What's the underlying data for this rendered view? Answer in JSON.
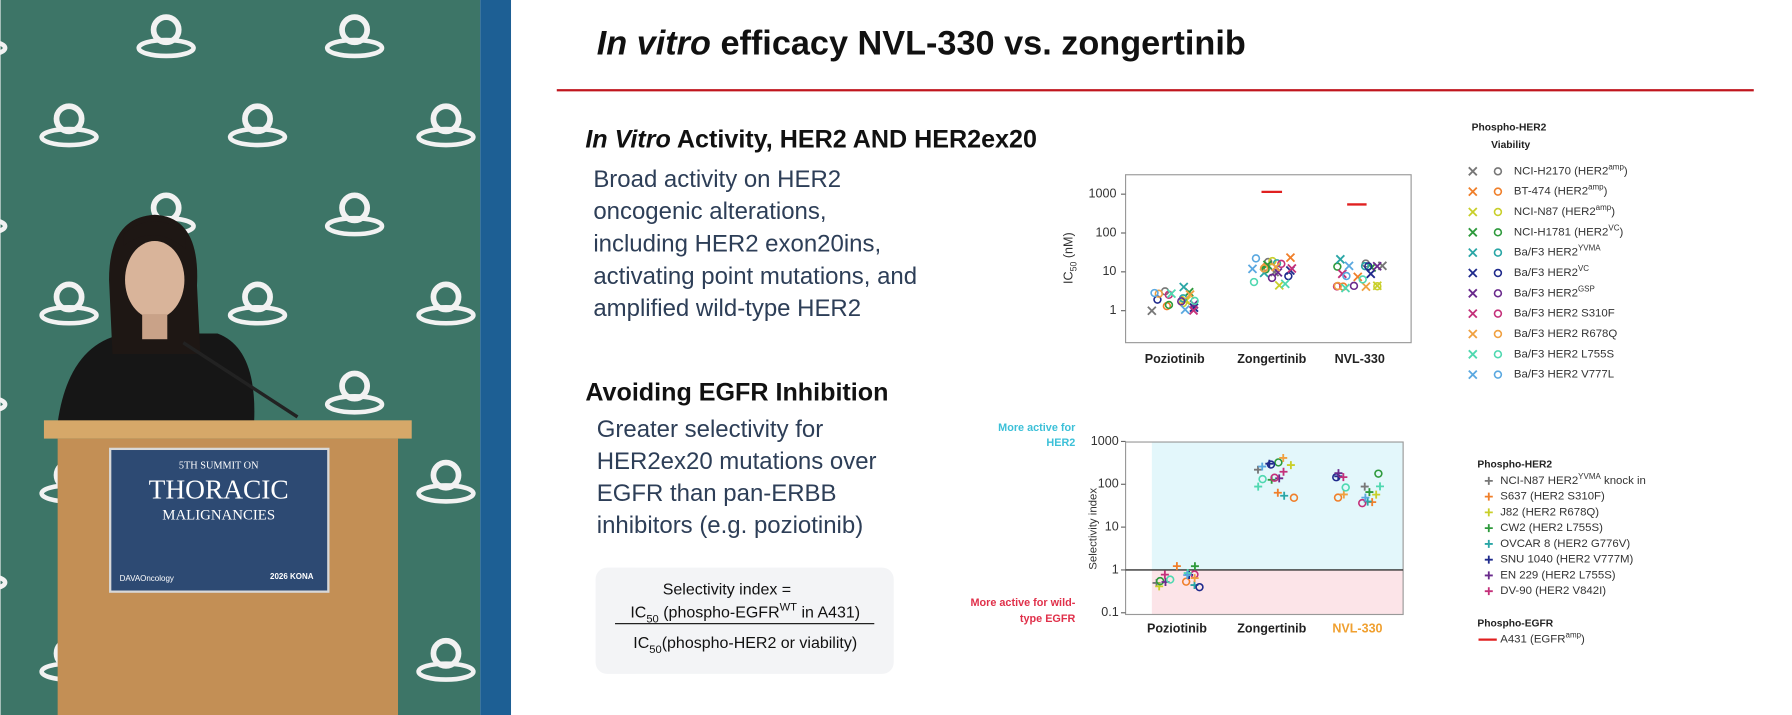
{
  "slide": {
    "title": {
      "italic": "In vitro",
      "rest": " efficacy NVL-330 vs. zongertinib"
    },
    "section1": {
      "heading_italic": "In Vitro",
      "heading_rest": " Activity, HER2 AND HER2ex20",
      "body": [
        "Broad activity on HER2",
        "oncogenic alterations,",
        "including HER2 exon20ins,",
        "activating point mutations, and",
        "amplified wild-type HER2"
      ]
    },
    "section2": {
      "heading": "Avoiding EGFR Inhibition",
      "body": [
        "Greater selectivity for",
        "HER2ex20 mutations over",
        "EGFR than pan-ERBB",
        "inhibitors (e.g. poziotinib)"
      ]
    },
    "formula": {
      "lhs": "Selectivity index =",
      "numerator": [
        "IC",
        "50",
        " (phospho-EGFR",
        "WT",
        " in A431)"
      ],
      "denominator": [
        "IC",
        "50",
        "(phospho-HER2 or viability)"
      ]
    },
    "chart1": {
      "ylabel": [
        "IC",
        "50",
        " (nM)"
      ],
      "yticks": [
        1,
        10,
        100,
        1000
      ],
      "categories": [
        "Poziotinib",
        "Zongertinib",
        "NVL-330"
      ],
      "legend": {
        "title": "Phospho-HER2",
        "subtitle": "Viability",
        "entries": [
          {
            "text": "NCI-H2170 (HER2",
            "sup": "amp",
            "after": ")",
            "color": "#777777"
          },
          {
            "text": "BT-474 (HER2",
            "sup": "amp",
            "after": ")",
            "color": "#f07f2a"
          },
          {
            "text": "NCI-N87 (HER2",
            "sup": "amp",
            "after": ")",
            "color": "#c9cf2a"
          },
          {
            "text": "NCI-H1781 (HER2",
            "sup": "VC",
            "after": ")",
            "color": "#2e9a3c"
          },
          {
            "text": "Ba/F3 HER2",
            "sup": "YVMA",
            "color": "#2aa6a6"
          },
          {
            "text": "Ba/F3 HER2",
            "sup": "VC",
            "color": "#1f2a8c"
          },
          {
            "text": "Ba/F3 HER2",
            "sup": "GSP",
            "color": "#6a2a8c"
          },
          {
            "text": "Ba/F3 HER2 S310F",
            "color": "#c4307a"
          },
          {
            "text": "Ba/F3 HER2 R678Q",
            "color": "#f0a040"
          },
          {
            "text": "Ba/F3 HER2 L755S",
            "color": "#4fd8b0"
          },
          {
            "text": "Ba/F3 HER2 V777L",
            "color": "#5aa8e0"
          }
        ]
      }
    },
    "chart2": {
      "ylabel": "Selectivity index",
      "yticks": [
        0.1,
        1,
        10,
        100,
        1000
      ],
      "categories": [
        "Poziotinib",
        "Zongertinib",
        "NVL-330"
      ],
      "annotations": {
        "her2": [
          "More active for",
          "HER2"
        ],
        "egfr": [
          "More active for wild-",
          "type EGFR"
        ]
      },
      "legend": {
        "title": "Phospho-HER2",
        "entries": [
          {
            "text": "NCI-N87 HER2",
            "sup": "YVMA",
            "after": " knock in",
            "color": "#777777"
          },
          {
            "text": "S637 (HER2 S310F)",
            "color": "#f07f2a"
          },
          {
            "text": "J82 (HER2 R678Q)",
            "color": "#c9cf2a"
          },
          {
            "text": "CW2 (HER2 L755S)",
            "color": "#2e9a3c"
          },
          {
            "text": "OVCAR 8 (HER2 G776V)",
            "color": "#2aa6a6"
          },
          {
            "text": "SNU 1040 (HER2 V777M)",
            "color": "#1f2a8c"
          },
          {
            "text": "EN 229 (HER2 L755S)",
            "color": "#6a2a8c"
          },
          {
            "text": "DV-90 (HER2 V842I)",
            "color": "#c4307a"
          }
        ],
        "egfr_title": "Phospho-EGFR",
        "egfr_entry": {
          "text": "A431 (EGFR",
          "sup": "amp",
          "after": ")",
          "color": "#e02020"
        }
      }
    }
  },
  "podium": {
    "line1": "5TH SUMMIT ON",
    "line2": "THORACIC",
    "line3": "MALIGNANCIES",
    "brand": "DAVAOncology",
    "event": "2026 KONA"
  }
}
